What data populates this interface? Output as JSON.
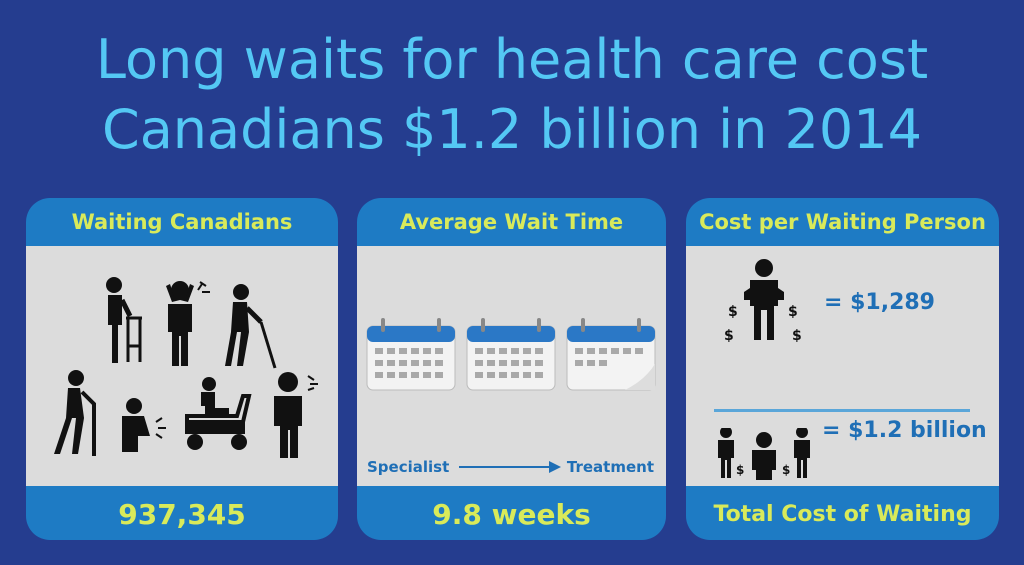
{
  "title": {
    "line1": "Long waits for health care cost",
    "line2": "Canadians $1.2 billion in 2014"
  },
  "panels": [
    {
      "header": "Waiting Canadians",
      "footer": "937,345"
    },
    {
      "header": "Average Wait Time",
      "footer": "9.8 weeks",
      "from_label": "Specialist",
      "to_label": "Treatment"
    },
    {
      "header": "Cost per Waiting Person",
      "footer": "Total Cost of Waiting",
      "per_person": "= $1,289",
      "total": "= $1.2 billion"
    }
  ],
  "colors": {
    "background": "#253d8f",
    "title": "#54c8f4",
    "panel_header": "#1e7bc4",
    "accent_text": "#d9ea5a",
    "blue_text": "#1f6fb6"
  }
}
